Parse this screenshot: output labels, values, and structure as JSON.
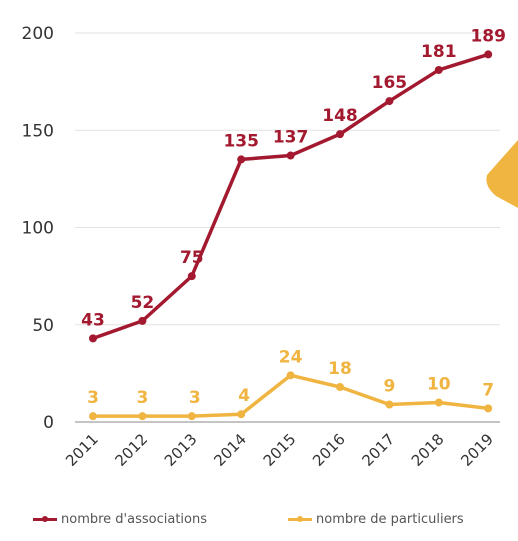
{
  "chart_data": {
    "type": "line",
    "categories": [
      "2011",
      "2012",
      "2013",
      "2014",
      "2015",
      "2016",
      "2017",
      "2018",
      "2019"
    ],
    "series": [
      {
        "name": "nombre d'associations",
        "color": "#a3192f",
        "values": [
          43,
          52,
          75,
          135,
          137,
          148,
          165,
          181,
          189
        ]
      },
      {
        "name": "nombre de particuliers",
        "color": "#f0b441",
        "values": [
          3,
          3,
          3,
          4,
          24,
          18,
          9,
          10,
          7
        ]
      }
    ],
    "y_ticks": [
      "0",
      "50",
      "100",
      "150",
      "200"
    ],
    "ylim": [
      0,
      200
    ],
    "grid": true,
    "legend_position": "bottom"
  }
}
